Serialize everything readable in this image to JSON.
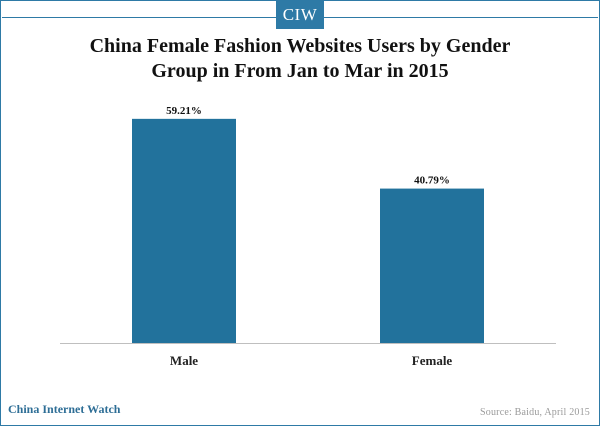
{
  "logo": {
    "text": "CIW"
  },
  "title_line1": "China Female Fashion Websites Users by Gender",
  "title_line2": "Group in From Jan to Mar in 2015",
  "footer": {
    "brand": "China Internet Watch",
    "source": "Source: Baidu, April  2015"
  },
  "colors": {
    "accent": "#2e7aa6",
    "bar": "#22729c",
    "axis": "#bfbfbf"
  },
  "chart_data": {
    "type": "bar",
    "title": "China Female Fashion Websites Users by Gender Group in From Jan to Mar in 2015",
    "categories": [
      "Male",
      "Female"
    ],
    "values": [
      59.21,
      40.79
    ],
    "value_labels": [
      "59.21%",
      "40.79%"
    ],
    "ylim": [
      0,
      70
    ],
    "grid": false,
    "legend": "none",
    "xlabel": "",
    "ylabel": ""
  }
}
